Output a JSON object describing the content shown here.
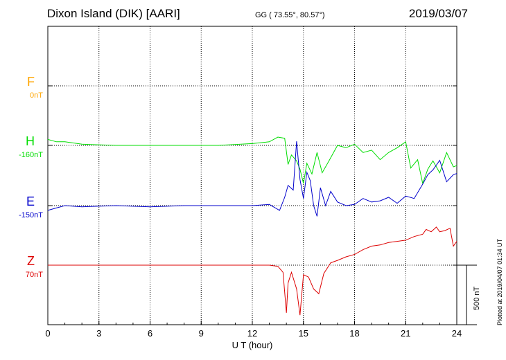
{
  "header": {
    "station": "Dixon Island (DIK)  [AARI]",
    "coords": "GG ( 73.55°,  80.57°)",
    "date": "2019/03/07"
  },
  "footer": {
    "plotted": "Plotted at 2019/04/07 01:34 UT",
    "scale_label": "500 nT"
  },
  "colors": {
    "F": "#ffa500",
    "H": "#00dd00",
    "E": "#0000cc",
    "Z": "#dd0000"
  },
  "chart_data": {
    "type": "line",
    "title": "Dixon Island (DIK)  [AARI]",
    "xlabel": "U T (hour)",
    "ylabel": "",
    "xlim": [
      0,
      24
    ],
    "x_ticks": [
      0,
      3,
      6,
      9,
      12,
      15,
      18,
      21,
      24
    ],
    "grid": true,
    "scale_bar_nT": 500,
    "components": [
      {
        "letter": "F",
        "base_label": "0nT",
        "color": "#ffa500",
        "baseline_nT": 0,
        "x": [],
        "y": []
      },
      {
        "letter": "H",
        "base_label": "-160nT",
        "color": "#00dd00",
        "baseline_nT": -160,
        "x": [
          0,
          0.5,
          1,
          2,
          4,
          6,
          8,
          10,
          12,
          13,
          13.5,
          13.9,
          14.1,
          14.3,
          14.6,
          14.8,
          15.0,
          15.2,
          15.5,
          15.8,
          16.1,
          16.5,
          17.0,
          17.5,
          18.0,
          18.5,
          19.0,
          19.5,
          20.0,
          20.5,
          21.0,
          21.3,
          21.7,
          22.0,
          22.3,
          22.6,
          23.0,
          23.4,
          23.8,
          24.0
        ],
        "y": [
          50,
          30,
          30,
          10,
          0,
          0,
          0,
          0,
          15,
          30,
          70,
          60,
          -160,
          -80,
          -130,
          -200,
          -320,
          -150,
          -240,
          -60,
          -230,
          -130,
          0,
          -20,
          10,
          -60,
          -40,
          -120,
          -60,
          -20,
          30,
          -190,
          -120,
          -320,
          -200,
          -130,
          -230,
          -60,
          -180,
          -170
        ]
      },
      {
        "letter": "E",
        "base_label": "-150nT",
        "color": "#0000cc",
        "baseline_nT": -150,
        "x": [
          0,
          0.5,
          1,
          2,
          4,
          6,
          8,
          10,
          12,
          13,
          13.6,
          13.9,
          14.1,
          14.4,
          14.6,
          14.8,
          15.0,
          15.2,
          15.4,
          15.6,
          15.8,
          16.0,
          16.3,
          16.6,
          17.0,
          17.5,
          18.0,
          18.5,
          19.0,
          19.5,
          20.0,
          20.5,
          21.0,
          21.5,
          22.0,
          22.3,
          22.6,
          23.0,
          23.4,
          23.8,
          24.0
        ],
        "y": [
          -40,
          -20,
          0,
          -10,
          0,
          -10,
          0,
          0,
          0,
          10,
          -40,
          70,
          170,
          130,
          540,
          220,
          60,
          280,
          210,
          0,
          -90,
          150,
          0,
          120,
          30,
          0,
          10,
          60,
          30,
          40,
          70,
          20,
          80,
          60,
          180,
          260,
          300,
          380,
          200,
          260,
          270
        ]
      },
      {
        "letter": "Z",
        "base_label": "70nT",
        "color": "#dd0000",
        "baseline_nT": 70,
        "x": [
          0,
          1,
          3,
          6,
          9,
          12,
          13,
          13.5,
          13.8,
          14.0,
          14.1,
          14.3,
          14.6,
          14.8,
          15.0,
          15.3,
          15.6,
          15.9,
          16.2,
          16.6,
          17.0,
          17.5,
          18.0,
          18.5,
          19.0,
          19.5,
          20.0,
          20.5,
          21.0,
          21.5,
          22.0,
          22.2,
          22.5,
          22.8,
          23.0,
          23.3,
          23.6,
          23.8,
          24.0
        ],
        "y": [
          0,
          0,
          0,
          0,
          0,
          0,
          0,
          -10,
          -60,
          -400,
          -150,
          -60,
          -200,
          -420,
          -80,
          -100,
          -200,
          -240,
          -70,
          20,
          40,
          70,
          90,
          130,
          160,
          170,
          190,
          200,
          210,
          240,
          260,
          300,
          280,
          320,
          280,
          290,
          310,
          160,
          200
        ]
      }
    ]
  }
}
